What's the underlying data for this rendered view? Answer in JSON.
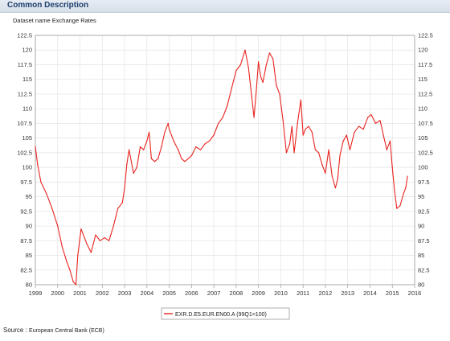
{
  "header": {
    "title": "Common Description"
  },
  "dataset": {
    "text": "Dataset name Exchange Rates"
  },
  "source": {
    "label": "Source :",
    "value": "European Central Bank (ECB)"
  },
  "colors": {
    "series": "#e8231f",
    "grid": "#e3e3e3",
    "axis": "#999999",
    "header_text": "#1f3f6d"
  },
  "chart_data": {
    "type": "line",
    "title": "",
    "xlabel": "",
    "ylabel": "",
    "grid": true,
    "legend_position": "bottom-center",
    "xlim": [
      1999,
      2016
    ],
    "ylim": [
      80,
      122.5
    ],
    "x_ticks": [
      "1999",
      "2000",
      "2001",
      "2002",
      "2003",
      "2004",
      "2005",
      "2006",
      "2007",
      "2008",
      "2009",
      "2010",
      "2011",
      "2012",
      "2013",
      "2014",
      "2015",
      "2016"
    ],
    "y_ticks": [
      "80",
      "82.5",
      "85",
      "87.5",
      "90",
      "92.5",
      "95",
      "97.5",
      "100",
      "102.5",
      "105",
      "107.5",
      "110",
      "112.5",
      "115",
      "117.5",
      "120",
      "122.5"
    ],
    "series": [
      {
        "name": "EXR.D.E5.EUR.EN00.A (99Q1=100)",
        "x": [
          1999.0,
          1999.1,
          1999.25,
          1999.5,
          1999.75,
          2000.0,
          2000.2,
          2000.4,
          2000.55,
          2000.7,
          2000.82,
          2000.9,
          2001.05,
          2001.3,
          2001.5,
          2001.7,
          2001.9,
          2002.1,
          2002.3,
          2002.5,
          2002.7,
          2002.9,
          2003.0,
          2003.1,
          2003.2,
          2003.3,
          2003.4,
          2003.55,
          2003.7,
          2003.85,
          2004.0,
          2004.1,
          2004.2,
          2004.35,
          2004.5,
          2004.65,
          2004.8,
          2004.95,
          2005.0,
          2005.2,
          2005.4,
          2005.55,
          2005.7,
          2005.85,
          2006.0,
          2006.2,
          2006.4,
          2006.6,
          2006.8,
          2007.0,
          2007.2,
          2007.4,
          2007.6,
          2007.8,
          2008.0,
          2008.2,
          2008.4,
          2008.55,
          2008.7,
          2008.8,
          2008.9,
          2009.0,
          2009.1,
          2009.2,
          2009.35,
          2009.5,
          2009.65,
          2009.8,
          2009.95,
          2010.1,
          2010.25,
          2010.4,
          2010.5,
          2010.6,
          2010.75,
          2010.9,
          2011.0,
          2011.1,
          2011.25,
          2011.4,
          2011.55,
          2011.7,
          2011.85,
          2012.0,
          2012.15,
          2012.3,
          2012.45,
          2012.55,
          2012.65,
          2012.8,
          2012.95,
          2013.1,
          2013.3,
          2013.5,
          2013.7,
          2013.9,
          2014.05,
          2014.25,
          2014.45,
          2014.6,
          2014.75,
          2014.9,
          2015.0,
          2015.1,
          2015.2,
          2015.35,
          2015.5,
          2015.6,
          2015.68
        ],
        "values": [
          103.5,
          100.5,
          97.5,
          95.5,
          93.0,
          90.0,
          86.5,
          84.0,
          82.5,
          80.5,
          80.0,
          85.0,
          89.5,
          87.0,
          85.5,
          88.5,
          87.5,
          88.0,
          87.5,
          90.0,
          93.0,
          94.0,
          96.5,
          100.5,
          103.0,
          101.0,
          99.0,
          100.0,
          103.5,
          103.0,
          104.5,
          106.0,
          101.5,
          101.0,
          101.5,
          103.5,
          106.0,
          107.5,
          106.5,
          104.5,
          103.0,
          101.5,
          101.0,
          101.5,
          102.0,
          103.5,
          103.0,
          104.0,
          104.5,
          105.5,
          107.5,
          108.5,
          110.5,
          113.5,
          116.5,
          117.5,
          120.0,
          117.0,
          112.0,
          108.5,
          113.0,
          118.0,
          115.5,
          114.5,
          117.5,
          119.5,
          118.5,
          114.0,
          112.5,
          108.0,
          102.5,
          104.0,
          107.0,
          102.5,
          107.5,
          111.5,
          105.5,
          106.5,
          107.0,
          106.0,
          103.0,
          102.5,
          100.5,
          99.0,
          103.0,
          98.5,
          96.5,
          98.0,
          102.0,
          104.5,
          105.5,
          103.0,
          106.0,
          107.0,
          106.5,
          108.5,
          109.0,
          107.5,
          108.0,
          105.5,
          103.0,
          104.5,
          100.0,
          96.0,
          93.0,
          93.5,
          95.5,
          96.5,
          98.5
        ]
      }
    ]
  }
}
